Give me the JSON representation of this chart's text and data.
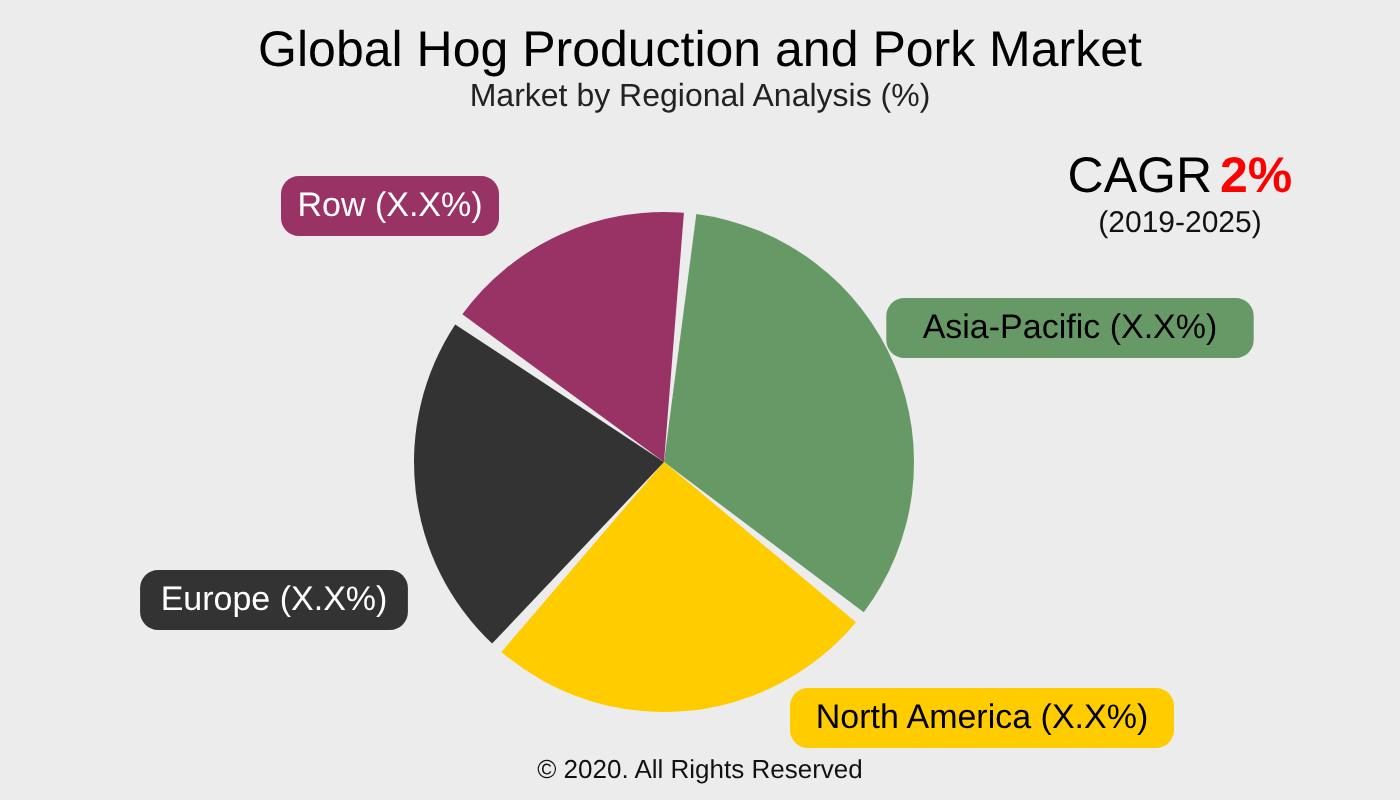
{
  "chart_data": {
    "type": "pie",
    "title": "Global Hog Production and Pork Market",
    "subtitle": "Market by Regional Analysis (%)",
    "categories": [
      "Asia-Pacific (X.X%)",
      "North America (X.X%)",
      "Europe (X.X%)",
      "Row (X.X%)"
    ],
    "values": [
      34,
      26,
      23,
      17
    ],
    "colors": [
      "#669966",
      "#ffcc00",
      "#333333",
      "#993366"
    ],
    "annotations": [
      "CAGR",
      "2%",
      "(2019-2025)",
      "© 2020. All Rights Reserved"
    ]
  }
}
